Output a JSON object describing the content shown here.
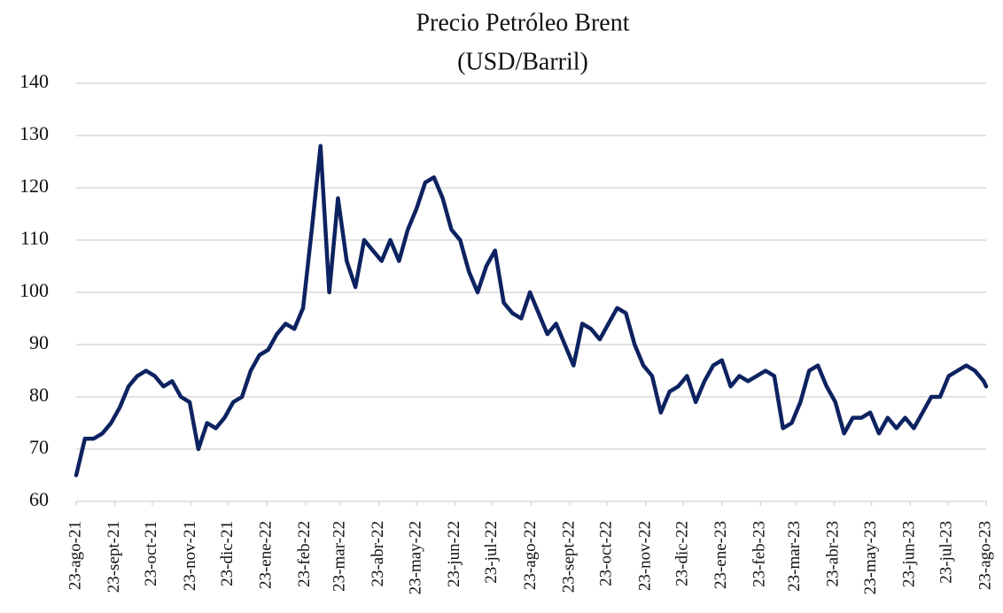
{
  "chart_data": {
    "type": "line",
    "title": "Precio Petróleo Brent",
    "subtitle": "(USD/Barril)",
    "color": "#0d2260",
    "grid": true,
    "ylim": [
      60,
      140
    ],
    "yticks": [
      60,
      70,
      80,
      90,
      100,
      110,
      120,
      130,
      140
    ],
    "xlim": [
      "2021-08-23",
      "2023-08-23"
    ],
    "xticks": [
      {
        "value": "2021-08-23",
        "label": "23-ago-21"
      },
      {
        "value": "2021-09-23",
        "label": "23-sept-21"
      },
      {
        "value": "2021-10-23",
        "label": "23-oct-21"
      },
      {
        "value": "2021-11-23",
        "label": "23-nov-21"
      },
      {
        "value": "2021-12-23",
        "label": "23-dic-21"
      },
      {
        "value": "2022-01-23",
        "label": "23-ene-22"
      },
      {
        "value": "2022-02-23",
        "label": "23-feb-22"
      },
      {
        "value": "2022-03-23",
        "label": "23-mar-22"
      },
      {
        "value": "2022-04-23",
        "label": "23-abr-22"
      },
      {
        "value": "2022-05-23",
        "label": "23-may-22"
      },
      {
        "value": "2022-06-23",
        "label": "23-jun-22"
      },
      {
        "value": "2022-07-23",
        "label": "23-jul-22"
      },
      {
        "value": "2022-08-23",
        "label": "23-ago-22"
      },
      {
        "value": "2022-09-23",
        "label": "23-sept-22"
      },
      {
        "value": "2022-10-23",
        "label": "23-oct-22"
      },
      {
        "value": "2022-11-23",
        "label": "23-nov-22"
      },
      {
        "value": "2022-12-23",
        "label": "23-dic-22"
      },
      {
        "value": "2023-01-23",
        "label": "23-ene-23"
      },
      {
        "value": "2023-02-23",
        "label": "23-feb-23"
      },
      {
        "value": "2023-03-23",
        "label": "23-mar-23"
      },
      {
        "value": "2023-04-23",
        "label": "23-abr-23"
      },
      {
        "value": "2023-05-23",
        "label": "23-may-23"
      },
      {
        "value": "2023-06-23",
        "label": "23-jun-23"
      },
      {
        "value": "2023-07-23",
        "label": "23-jul-23"
      },
      {
        "value": "2023-08-23",
        "label": "23-ago-23"
      }
    ],
    "x": [
      "2021-08-23",
      "2021-08-30",
      "2021-09-06",
      "2021-09-13",
      "2021-09-20",
      "2021-09-27",
      "2021-10-04",
      "2021-10-11",
      "2021-10-18",
      "2021-10-25",
      "2021-11-01",
      "2021-11-08",
      "2021-11-15",
      "2021-11-22",
      "2021-11-29",
      "2021-12-06",
      "2021-12-13",
      "2021-12-20",
      "2021-12-27",
      "2022-01-03",
      "2022-01-10",
      "2022-01-17",
      "2022-01-24",
      "2022-01-31",
      "2022-02-07",
      "2022-02-14",
      "2022-02-21",
      "2022-02-28",
      "2022-03-07",
      "2022-03-14",
      "2022-03-21",
      "2022-03-28",
      "2022-04-04",
      "2022-04-11",
      "2022-04-18",
      "2022-04-25",
      "2022-05-02",
      "2022-05-09",
      "2022-05-16",
      "2022-05-23",
      "2022-05-30",
      "2022-06-06",
      "2022-06-13",
      "2022-06-20",
      "2022-06-27",
      "2022-07-04",
      "2022-07-11",
      "2022-07-18",
      "2022-07-25",
      "2022-08-01",
      "2022-08-08",
      "2022-08-15",
      "2022-08-22",
      "2022-08-29",
      "2022-09-05",
      "2022-09-12",
      "2022-09-19",
      "2022-09-26",
      "2022-10-03",
      "2022-10-10",
      "2022-10-17",
      "2022-10-24",
      "2022-10-31",
      "2022-11-07",
      "2022-11-14",
      "2022-11-21",
      "2022-11-28",
      "2022-12-05",
      "2022-12-12",
      "2022-12-19",
      "2022-12-26",
      "2023-01-02",
      "2023-01-09",
      "2023-01-16",
      "2023-01-23",
      "2023-01-30",
      "2023-02-06",
      "2023-02-13",
      "2023-02-20",
      "2023-02-27",
      "2023-03-06",
      "2023-03-13",
      "2023-03-20",
      "2023-03-27",
      "2023-04-03",
      "2023-04-10",
      "2023-04-17",
      "2023-04-24",
      "2023-05-01",
      "2023-05-08",
      "2023-05-15",
      "2023-05-22",
      "2023-05-29",
      "2023-06-05",
      "2023-06-12",
      "2023-06-19",
      "2023-06-26",
      "2023-07-03",
      "2023-07-10",
      "2023-07-17",
      "2023-07-24",
      "2023-07-31",
      "2023-08-07",
      "2023-08-14",
      "2023-08-21",
      "2023-08-23"
    ],
    "values": [
      65,
      72,
      72,
      73,
      75,
      78,
      82,
      84,
      85,
      84,
      82,
      83,
      80,
      79,
      70,
      75,
      74,
      76,
      79,
      80,
      85,
      88,
      89,
      92,
      94,
      93,
      97,
      112,
      128,
      100,
      118,
      106,
      101,
      110,
      108,
      106,
      110,
      106,
      112,
      116,
      121,
      122,
      118,
      112,
      110,
      104,
      100,
      105,
      108,
      98,
      96,
      95,
      100,
      96,
      92,
      94,
      90,
      86,
      94,
      93,
      91,
      94,
      97,
      96,
      90,
      86,
      84,
      77,
      81,
      82,
      84,
      79,
      83,
      86,
      87,
      82,
      84,
      83,
      84,
      85,
      84,
      74,
      75,
      79,
      85,
      86,
      82,
      79,
      73,
      76,
      76,
      77,
      73,
      76,
      74,
      76,
      74,
      77,
      80,
      80,
      84,
      85,
      86,
      85,
      83,
      82
    ]
  }
}
